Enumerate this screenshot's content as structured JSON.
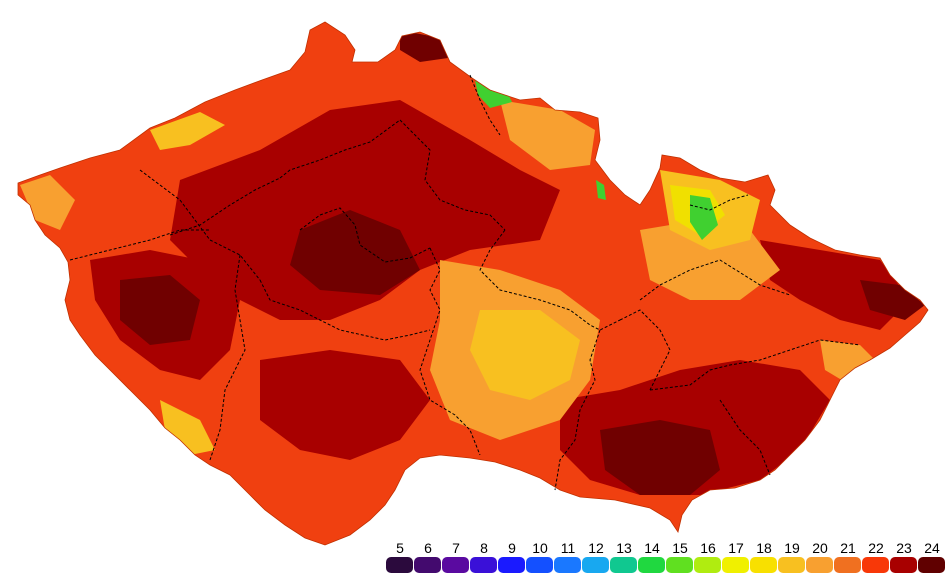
{
  "legend": {
    "items": [
      {
        "label": "5",
        "color": "#2b0a3d"
      },
      {
        "label": "6",
        "color": "#430a6e"
      },
      {
        "label": "7",
        "color": "#5a0aa0"
      },
      {
        "label": "8",
        "color": "#3a10d8"
      },
      {
        "label": "9",
        "color": "#1a1aff"
      },
      {
        "label": "10",
        "color": "#1450ff"
      },
      {
        "label": "11",
        "color": "#1a78ff"
      },
      {
        "label": "12",
        "color": "#18a8f0"
      },
      {
        "label": "13",
        "color": "#10c890"
      },
      {
        "label": "14",
        "color": "#20d840"
      },
      {
        "label": "15",
        "color": "#60e020"
      },
      {
        "label": "16",
        "color": "#b0ec10"
      },
      {
        "label": "17",
        "color": "#f0f000"
      },
      {
        "label": "18",
        "color": "#f8e000"
      },
      {
        "label": "19",
        "color": "#f8c020"
      },
      {
        "label": "20",
        "color": "#f8a030"
      },
      {
        "label": "21",
        "color": "#f07020"
      },
      {
        "label": "22",
        "color": "#f83808"
      },
      {
        "label": "23",
        "color": "#a80000"
      },
      {
        "label": "24",
        "color": "#600000"
      }
    ]
  },
  "map": {
    "base_color": "#f04010",
    "dark_color": "#a80000",
    "darkest_color": "#700000",
    "light_color": "#f8a030",
    "pale_color": "#f8c020",
    "yellow_color": "#f0e000",
    "green_color": "#40d030",
    "border_color": "#000000"
  }
}
